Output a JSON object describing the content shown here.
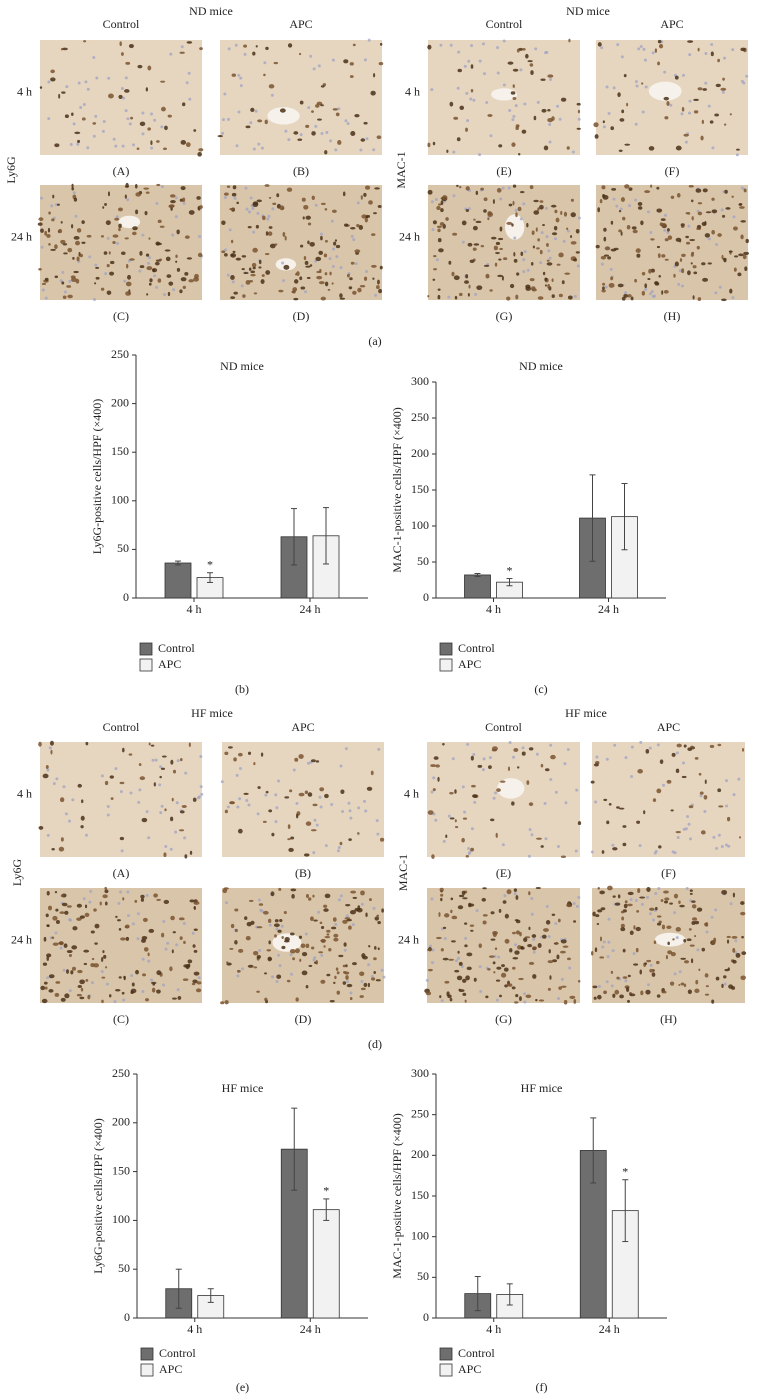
{
  "image_rows": [
    {
      "caption": "(a)",
      "groups": [
        {
          "title": "ND mice",
          "column_labels": [
            "Control",
            "APC"
          ],
          "row_labels": [
            "4 h",
            "24 h"
          ],
          "marker": "Ly6G",
          "panel_labels": [
            "(A)",
            "(B)",
            "(C)",
            "(D)"
          ]
        },
        {
          "title": "ND mice",
          "column_labels": [
            "Control",
            "APC"
          ],
          "row_labels": [
            "4 h",
            "24 h"
          ],
          "marker": "MAC-1",
          "panel_labels": [
            "(E)",
            "(F)",
            "(G)",
            "(H)"
          ]
        }
      ]
    },
    {
      "caption": "(d)",
      "groups": [
        {
          "title": "HF mice",
          "column_labels": [
            "Control",
            "APC"
          ],
          "row_labels": [
            "4 h",
            "24 h"
          ],
          "marker": "Ly6G",
          "panel_labels": [
            "(A)",
            "(B)",
            "(C)",
            "(D)"
          ]
        },
        {
          "title": "HF mice",
          "column_labels": [
            "Control",
            "APC"
          ],
          "row_labels": [
            "4 h",
            "24 h"
          ],
          "marker": "MAC-1",
          "panel_labels": [
            "(E)",
            "(F)",
            "(G)",
            "(H)"
          ]
        }
      ]
    }
  ],
  "chart_data": [
    {
      "type": "bar",
      "title": "ND mice",
      "caption": "(b)",
      "y_label": "Ly6G-positive cells/HPF (×400)",
      "categories": [
        "4 h",
        "24 h"
      ],
      "ylim": [
        0,
        250
      ],
      "yticks": [
        0,
        50,
        100,
        150,
        200,
        250
      ],
      "series": [
        {
          "name": "Control",
          "color": "#6e6e6e",
          "values": [
            36,
            63
          ],
          "errors": [
            2,
            29
          ]
        },
        {
          "name": "APC",
          "color": "#f2f2f2",
          "values": [
            21,
            64
          ],
          "errors": [
            5,
            29
          ]
        }
      ],
      "annotations": [
        {
          "text": "*",
          "category": "4 h",
          "series": "APC"
        }
      ]
    },
    {
      "type": "bar",
      "title": "ND mice",
      "caption": "(c)",
      "y_label": "MAC-1-positive cells/HPF (×400)",
      "categories": [
        "4 h",
        "24 h"
      ],
      "ylim": [
        0,
        300
      ],
      "yticks": [
        0,
        50,
        100,
        150,
        200,
        250,
        300
      ],
      "series": [
        {
          "name": "Control",
          "color": "#6e6e6e",
          "values": [
            32,
            111
          ],
          "errors": [
            2,
            60
          ]
        },
        {
          "name": "APC",
          "color": "#f2f2f2",
          "values": [
            22,
            113
          ],
          "errors": [
            5,
            46
          ]
        }
      ],
      "annotations": [
        {
          "text": "*",
          "category": "4 h",
          "series": "APC"
        }
      ]
    },
    {
      "type": "bar",
      "title": "HF mice",
      "caption": "(e)",
      "y_label": "Ly6G-positive cells/HPF (×400)",
      "categories": [
        "4 h",
        "24 h"
      ],
      "ylim": [
        0,
        250
      ],
      "yticks": [
        0,
        50,
        100,
        150,
        200,
        250
      ],
      "series": [
        {
          "name": "Control",
          "color": "#6e6e6e",
          "values": [
            30,
            173
          ],
          "errors": [
            20,
            42
          ]
        },
        {
          "name": "APC",
          "color": "#f2f2f2",
          "values": [
            23,
            111
          ],
          "errors": [
            7,
            11
          ]
        }
      ],
      "annotations": [
        {
          "text": "*",
          "category": "24 h",
          "series": "APC"
        }
      ]
    },
    {
      "type": "bar",
      "title": "HF mice",
      "caption": "(f)",
      "y_label": "MAC-1-positive cells/HPF (×400)",
      "categories": [
        "4 h",
        "24 h"
      ],
      "ylim": [
        0,
        300
      ],
      "yticks": [
        0,
        50,
        100,
        150,
        200,
        250,
        300
      ],
      "series": [
        {
          "name": "Control",
          "color": "#6e6e6e",
          "values": [
            30,
            206
          ],
          "errors": [
            21,
            40
          ]
        },
        {
          "name": "APC",
          "color": "#f2f2f2",
          "values": [
            29,
            132
          ],
          "errors": [
            13,
            38
          ]
        }
      ],
      "annotations": [
        {
          "text": "*",
          "category": "24 h",
          "series": "APC"
        }
      ]
    }
  ]
}
